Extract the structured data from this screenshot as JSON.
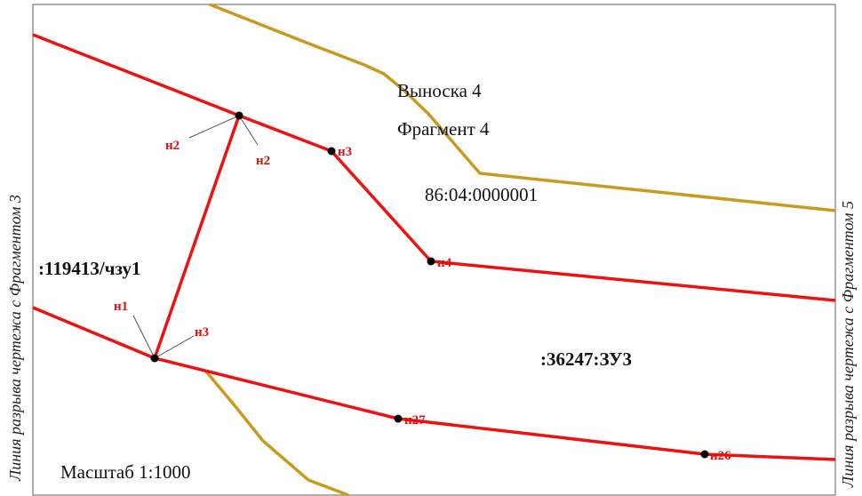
{
  "map": {
    "callout": "Выноска 4",
    "fragment": "Фрагмент 4",
    "cadastral_quarter": "86:04:0000001",
    "parcels": {
      "left": ":119413/чзу1",
      "right": ":36247:ЗУ3"
    },
    "scale": "Масштаб 1:1000",
    "break_line_left": "Линия разрыва чертежа с Фрагментом 3",
    "break_line_right": "Линия разрыва чертежа с Фрагментом 5",
    "points": {
      "n1": "н1",
      "n2_left": "н2",
      "n2_right": "н2",
      "n3_left": "н3",
      "n3_top": "н3",
      "n4": "н4",
      "n27": "н27",
      "n26": "н26"
    },
    "colors": {
      "boundary": "#ee1111",
      "quarter_line": "#c89a1e",
      "frame": "#777777",
      "point_label": "#e01010"
    }
  }
}
